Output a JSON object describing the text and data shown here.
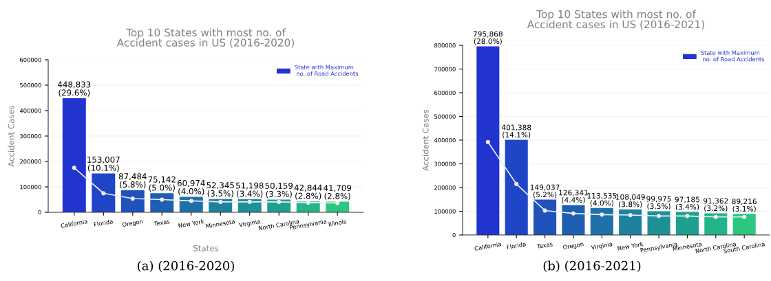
{
  "chart_data": [
    {
      "type": "bar",
      "title": "Top 10 States with most no. of\nAccident cases in US (2016-2020)",
      "xlabel": "States",
      "ylabel": "Accident Cases",
      "categories": [
        "California",
        "Florida",
        "Oregon",
        "Texas",
        "New York",
        "Minnesota",
        "Virginia",
        "North Carolina",
        "Pennsylvania",
        "Illinois"
      ],
      "series": [
        {
          "name": "State with Maximum\n no. of Road Accidents",
          "color": "#2234d0",
          "values": [
            448833,
            153007,
            87484,
            75142,
            60974,
            52345,
            51198,
            50159,
            42844,
            41709
          ],
          "colors": [
            "#2234d0",
            "#1f46c6",
            "#1f52bb",
            "#1f5fb3",
            "#2070aa",
            "#1e829f",
            "#1e9196",
            "#1fa08e",
            "#25b488",
            "#2cc77f"
          ],
          "value_labels": [
            "448,833\n(29.6%)",
            "153,007\n(10.1%)",
            "87,484\n(5.8%)",
            "75,142\n(5.0%)",
            "60,974\n(4.0%)",
            "52,345\n(3.5%)",
            "51,198\n(3.4%)",
            "50,159\n(3.3%)",
            "42,844\n(2.8%)",
            "41,709\n(2.8%)"
          ]
        },
        {
          "type": "line",
          "color": "#ececf4",
          "values": [
            175000,
            75000,
            54000,
            50000,
            45000,
            41000,
            41000,
            41000,
            38000,
            37000
          ]
        }
      ],
      "ylim": [
        0,
        600000
      ],
      "yticks": [
        0,
        100000,
        200000,
        300000,
        400000,
        500000,
        600000
      ],
      "grid": "y",
      "legend": "top right",
      "marker": "circle",
      "line_style": "solid",
      "annotations": [
        "(a) (2016-2020)"
      ]
    },
    {
      "type": "bar",
      "title": "Top 10 States with most no. of\nAccident cases in US (2016-2021)",
      "ylabel": "Accident Cases",
      "categories": [
        "California",
        "Florida",
        "Texas",
        "Oregon",
        "Virginia",
        "New York",
        "Pennsylvania",
        "Minnesota",
        "North Carolina",
        "South Carolina"
      ],
      "series": [
        {
          "name": "State with Maximum\n no. of Road Accidents",
          "color": "#2234d0",
          "values": [
            795868,
            401388,
            149037,
            126341,
            113535,
            108049,
            99975,
            97185,
            91362,
            89216
          ],
          "colors": [
            "#2234d0",
            "#1f46c6",
            "#1f52bb",
            "#1f5fb3",
            "#2070aa",
            "#1e829f",
            "#1e9196",
            "#1fa08e",
            "#25b488",
            "#2cc77f"
          ],
          "value_labels": [
            "795,868\n(28.0%)",
            "401,388\n(14.1%)",
            "149,037\n(5.2%)",
            "126,341\n(4.4%)",
            "113,535\n(4.0%)",
            "108,049\n(3.8%)",
            "99,975\n(3.5%)",
            "97,185\n(3.4%)",
            "91,362\n(3.2%)",
            "89,216\n(3.1%)"
          ]
        },
        {
          "type": "line",
          "color": "#ececf4",
          "values": [
            392000,
            215000,
            103000,
            91000,
            86000,
            84000,
            80000,
            80000,
            76000,
            76000
          ]
        }
      ],
      "ylim": [
        0,
        800000
      ],
      "yticks": [
        0,
        100000,
        200000,
        300000,
        400000,
        500000,
        600000,
        700000,
        800000
      ],
      "grid": "y",
      "legend": "top right",
      "marker": "circle",
      "line_style": "solid",
      "annotations": [
        "(b) (2016-2021)"
      ]
    }
  ]
}
